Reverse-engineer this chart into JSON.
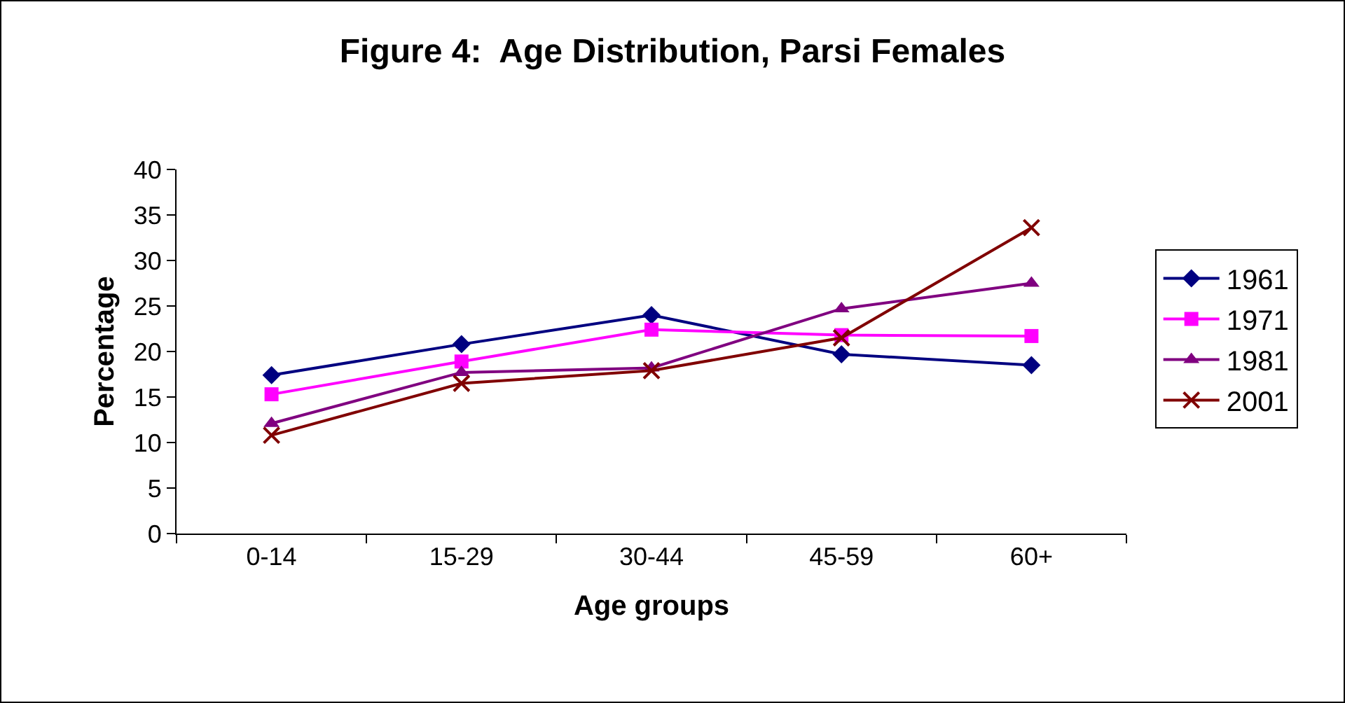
{
  "chart_data": {
    "type": "line",
    "title": "Figure 4:  Age Distribution, Parsi Females",
    "xlabel": "Age groups",
    "ylabel": "Percentage",
    "categories": [
      "0-14",
      "15-29",
      "30-44",
      "45-59",
      "60+"
    ],
    "series": [
      {
        "name": "1961",
        "color": "#000080",
        "marker": "diamond",
        "values": [
          17.4,
          20.8,
          24.0,
          19.7,
          18.5
        ]
      },
      {
        "name": "1971",
        "color": "#ff00ff",
        "marker": "square",
        "values": [
          15.3,
          18.9,
          22.4,
          21.8,
          21.7
        ]
      },
      {
        "name": "1981",
        "color": "#800080",
        "marker": "triangle",
        "values": [
          12.1,
          17.7,
          18.2,
          24.7,
          27.5
        ]
      },
      {
        "name": "2001",
        "color": "#800000",
        "marker": "cross",
        "values": [
          10.8,
          16.5,
          17.9,
          21.5,
          33.6
        ]
      }
    ],
    "ylim": [
      0,
      40
    ],
    "yticks": [
      0,
      5,
      10,
      15,
      20,
      25,
      30,
      35,
      40
    ],
    "grid": false,
    "legend": "right",
    "line_style": "solid"
  }
}
